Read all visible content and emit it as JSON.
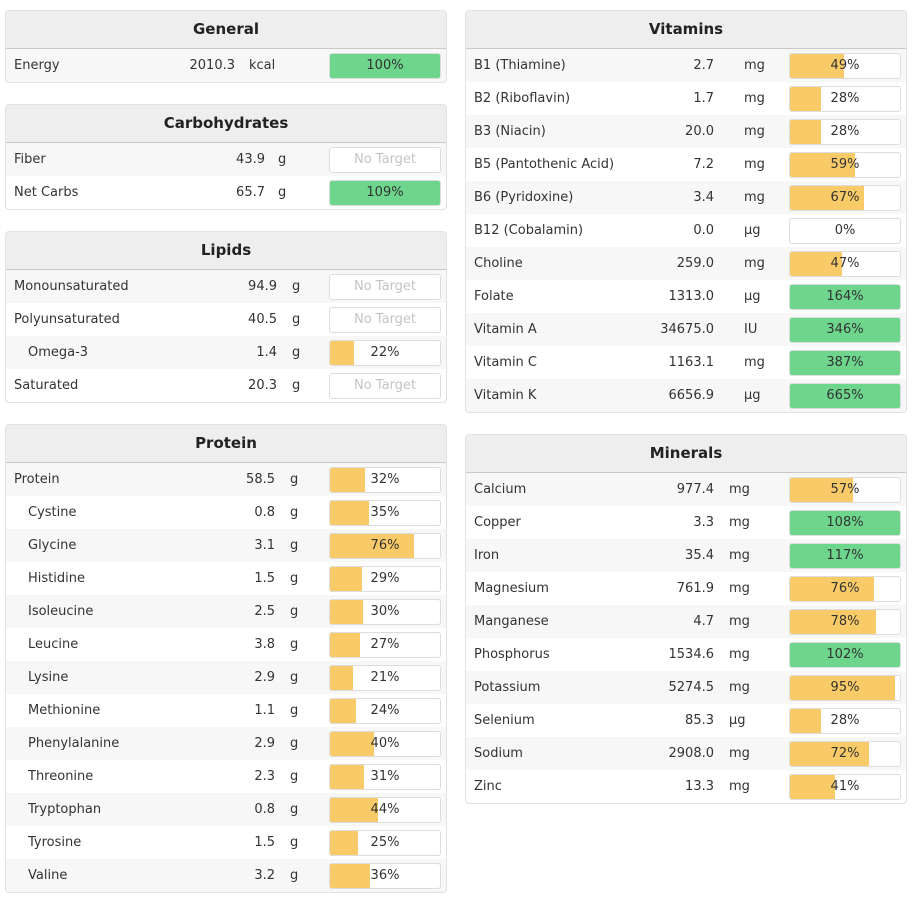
{
  "colors": {
    "partial": "#f8cb68",
    "met": "#6dd58c"
  },
  "no_target_label": "No Target",
  "left": [
    {
      "title": "General",
      "valRight": 229,
      "unitLeft": 243,
      "rows": [
        {
          "name": "Energy",
          "value": "2010.3",
          "unit": "kcal",
          "pct": 100
        }
      ]
    },
    {
      "title": "Carbohydrates",
      "valRight": 259,
      "unitLeft": 272,
      "rows": [
        {
          "name": "Fiber",
          "value": "43.9",
          "unit": "g",
          "pct": null
        },
        {
          "name": "Net Carbs",
          "value": "65.7",
          "unit": "g",
          "pct": 109
        }
      ]
    },
    {
      "title": "Lipids",
      "valRight": 271,
      "unitLeft": 286,
      "rows": [
        {
          "name": "Monounsaturated",
          "value": "94.9",
          "unit": "g",
          "pct": null
        },
        {
          "name": "Polyunsaturated",
          "value": "40.5",
          "unit": "g",
          "pct": null
        },
        {
          "name": "Omega-3",
          "value": "1.4",
          "unit": "g",
          "pct": 22,
          "indent": true
        },
        {
          "name": "Saturated",
          "value": "20.3",
          "unit": "g",
          "pct": null
        }
      ]
    },
    {
      "title": "Protein",
      "valRight": 269,
      "unitLeft": 284,
      "rows": [
        {
          "name": "Protein",
          "value": "58.5",
          "unit": "g",
          "pct": 32
        },
        {
          "name": "Cystine",
          "value": "0.8",
          "unit": "g",
          "pct": 35,
          "indent": true
        },
        {
          "name": "Glycine",
          "value": "3.1",
          "unit": "g",
          "pct": 76,
          "indent": true
        },
        {
          "name": "Histidine",
          "value": "1.5",
          "unit": "g",
          "pct": 29,
          "indent": true
        },
        {
          "name": "Isoleucine",
          "value": "2.5",
          "unit": "g",
          "pct": 30,
          "indent": true
        },
        {
          "name": "Leucine",
          "value": "3.8",
          "unit": "g",
          "pct": 27,
          "indent": true
        },
        {
          "name": "Lysine",
          "value": "2.9",
          "unit": "g",
          "pct": 21,
          "indent": true
        },
        {
          "name": "Methionine",
          "value": "1.1",
          "unit": "g",
          "pct": 24,
          "indent": true
        },
        {
          "name": "Phenylalanine",
          "value": "2.9",
          "unit": "g",
          "pct": 40,
          "indent": true
        },
        {
          "name": "Threonine",
          "value": "2.3",
          "unit": "g",
          "pct": 31,
          "indent": true
        },
        {
          "name": "Tryptophan",
          "value": "0.8",
          "unit": "g",
          "pct": 44,
          "indent": true
        },
        {
          "name": "Tyrosine",
          "value": "1.5",
          "unit": "g",
          "pct": 25,
          "indent": true
        },
        {
          "name": "Valine",
          "value": "3.2",
          "unit": "g",
          "pct": 36,
          "indent": true
        }
      ]
    }
  ],
  "right": [
    {
      "title": "Vitamins",
      "valRight": 248,
      "unitLeft": 278,
      "rows": [
        {
          "name": "B1 (Thiamine)",
          "value": "2.7",
          "unit": "mg",
          "pct": 49
        },
        {
          "name": "B2 (Riboflavin)",
          "value": "1.7",
          "unit": "mg",
          "pct": 28
        },
        {
          "name": "B3 (Niacin)",
          "value": "20.0",
          "unit": "mg",
          "pct": 28
        },
        {
          "name": "B5 (Pantothenic Acid)",
          "value": "7.2",
          "unit": "mg",
          "pct": 59
        },
        {
          "name": "B6 (Pyridoxine)",
          "value": "3.4",
          "unit": "mg",
          "pct": 67
        },
        {
          "name": "B12 (Cobalamin)",
          "value": "0.0",
          "unit": "µg",
          "pct": 0
        },
        {
          "name": "Choline",
          "value": "259.0",
          "unit": "mg",
          "pct": 47
        },
        {
          "name": "Folate",
          "value": "1313.0",
          "unit": "µg",
          "pct": 164
        },
        {
          "name": "Vitamin A",
          "value": "34675.0",
          "unit": "IU",
          "pct": 346
        },
        {
          "name": "Vitamin C",
          "value": "1163.1",
          "unit": "mg",
          "pct": 387
        },
        {
          "name": "Vitamin K",
          "value": "6656.9",
          "unit": "µg",
          "pct": 665
        }
      ]
    },
    {
      "title": "Minerals",
      "valRight": 248,
      "unitLeft": 263,
      "rows": [
        {
          "name": "Calcium",
          "value": "977.4",
          "unit": "mg",
          "pct": 57
        },
        {
          "name": "Copper",
          "value": "3.3",
          "unit": "mg",
          "pct": 108
        },
        {
          "name": "Iron",
          "value": "35.4",
          "unit": "mg",
          "pct": 117
        },
        {
          "name": "Magnesium",
          "value": "761.9",
          "unit": "mg",
          "pct": 76
        },
        {
          "name": "Manganese",
          "value": "4.7",
          "unit": "mg",
          "pct": 78
        },
        {
          "name": "Phosphorus",
          "value": "1534.6",
          "unit": "mg",
          "pct": 102
        },
        {
          "name": "Potassium",
          "value": "5274.5",
          "unit": "mg",
          "pct": 95
        },
        {
          "name": "Selenium",
          "value": "85.3",
          "unit": "µg",
          "pct": 28
        },
        {
          "name": "Sodium",
          "value": "2908.0",
          "unit": "mg",
          "pct": 72
        },
        {
          "name": "Zinc",
          "value": "13.3",
          "unit": "mg",
          "pct": 41
        }
      ]
    }
  ]
}
